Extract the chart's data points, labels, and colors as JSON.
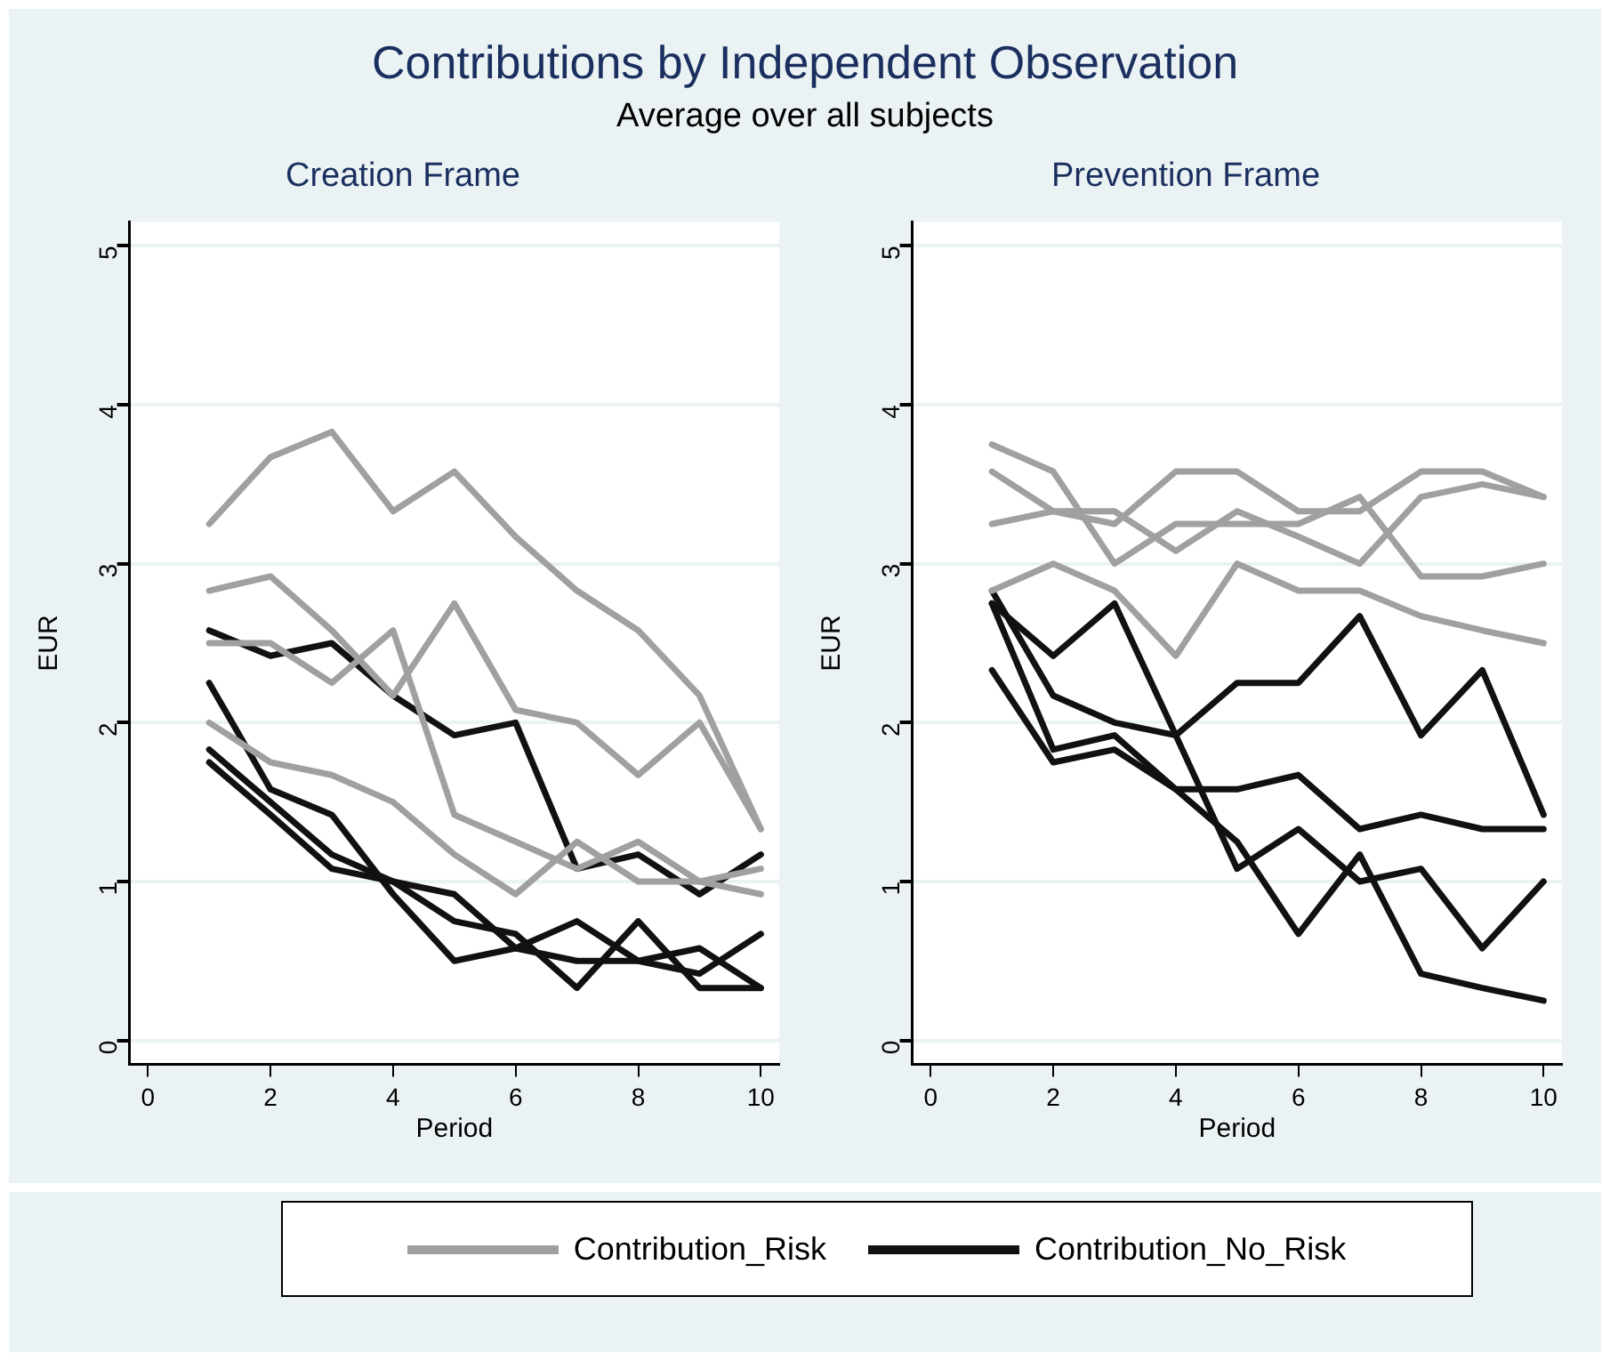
{
  "chart_data": [
    {
      "type": "other",
      "title": "Contributions by Independent Observation",
      "subtitle": "Average over all subjects"
    },
    {
      "type": "line",
      "title": "Creation Frame",
      "xlabel": "Period",
      "ylabel": "EUR",
      "x": [
        1,
        2,
        3,
        4,
        5,
        6,
        7,
        8,
        9,
        10
      ],
      "xlim": [
        -0.3,
        10.3
      ],
      "xticks": [
        0,
        2,
        4,
        6,
        8,
        10
      ],
      "ylim": [
        -0.15,
        5.15
      ],
      "yticks": [
        0,
        1,
        2,
        3,
        4,
        5
      ],
      "grid": "y",
      "legend": "bottom",
      "marker": "none",
      "series": [
        {
          "name": "Contribution_Risk",
          "color": "#a0a0a0",
          "values": [
            3.25,
            3.67,
            3.83,
            3.33,
            3.58,
            3.17,
            2.83,
            2.58,
            2.17,
            1.33
          ]
        },
        {
          "color": "#a0a0a0",
          "values": [
            2.83,
            2.92,
            2.58,
            2.17,
            2.75,
            2.08,
            2.0,
            1.67,
            2.0,
            1.33
          ]
        },
        {
          "color": "#a0a0a0",
          "values": [
            2.5,
            2.5,
            2.25,
            2.58,
            1.42,
            1.25,
            1.08,
            1.25,
            1.0,
            1.08
          ]
        },
        {
          "color": "#a0a0a0",
          "values": [
            2.0,
            1.75,
            1.67,
            1.5,
            1.17,
            0.92,
            1.25,
            1.0,
            1.0,
            0.92
          ]
        },
        {
          "name": "Contribution_No_Risk",
          "color": "#111111",
          "values": [
            2.58,
            2.42,
            2.5,
            2.17,
            1.92,
            2.0,
            1.08,
            1.17,
            0.92,
            1.17
          ]
        },
        {
          "color": "#111111",
          "values": [
            2.25,
            1.58,
            1.42,
            0.92,
            0.5,
            0.58,
            0.75,
            0.5,
            0.58,
            0.33
          ]
        },
        {
          "color": "#111111",
          "values": [
            1.83,
            1.5,
            1.17,
            1.0,
            0.75,
            0.67,
            0.33,
            0.75,
            0.33,
            0.33
          ]
        },
        {
          "color": "#111111",
          "values": [
            1.75,
            1.42,
            1.08,
            1.0,
            0.92,
            0.58,
            0.5,
            0.5,
            0.42,
            0.67
          ]
        }
      ]
    },
    {
      "type": "line",
      "title": "Prevention Frame",
      "xlabel": "Period",
      "ylabel": "EUR",
      "x": [
        1,
        2,
        3,
        4,
        5,
        6,
        7,
        8,
        9,
        10
      ],
      "xlim": [
        -0.3,
        10.3
      ],
      "xticks": [
        0,
        2,
        4,
        6,
        8,
        10
      ],
      "ylim": [
        -0.15,
        5.15
      ],
      "yticks": [
        0,
        1,
        2,
        3,
        4,
        5
      ],
      "grid": "y",
      "marker": "none",
      "series": [
        {
          "color": "#a0a0a0",
          "values": [
            3.75,
            3.58,
            3.0,
            3.25,
            3.25,
            3.25,
            3.42,
            2.92,
            2.92,
            3.0
          ]
        },
        {
          "color": "#a0a0a0",
          "values": [
            3.58,
            3.33,
            3.33,
            3.08,
            3.33,
            3.17,
            3.0,
            3.42,
            3.5,
            3.42
          ]
        },
        {
          "color": "#a0a0a0",
          "values": [
            3.25,
            3.33,
            3.25,
            3.58,
            3.58,
            3.33,
            3.33,
            3.58,
            3.58,
            3.42
          ]
        },
        {
          "color": "#a0a0a0",
          "values": [
            2.83,
            3.0,
            2.83,
            2.42,
            3.0,
            2.83,
            2.83,
            2.67,
            2.58,
            2.5
          ]
        },
        {
          "color": "#111111",
          "values": [
            2.75,
            2.42,
            2.75,
            1.92,
            1.08,
            1.33,
            1.0,
            1.08,
            0.58,
            1.0
          ]
        },
        {
          "color": "#111111",
          "values": [
            2.83,
            2.17,
            2.0,
            1.92,
            2.25,
            2.25,
            2.67,
            1.92,
            2.33,
            1.42
          ]
        },
        {
          "color": "#111111",
          "values": [
            2.75,
            1.83,
            1.92,
            1.58,
            1.58,
            1.67,
            1.33,
            1.42,
            1.33,
            1.33
          ]
        },
        {
          "color": "#111111",
          "values": [
            2.33,
            1.75,
            1.83,
            1.58,
            1.25,
            0.67,
            1.17,
            0.42,
            0.33,
            0.25
          ]
        }
      ]
    }
  ]
}
